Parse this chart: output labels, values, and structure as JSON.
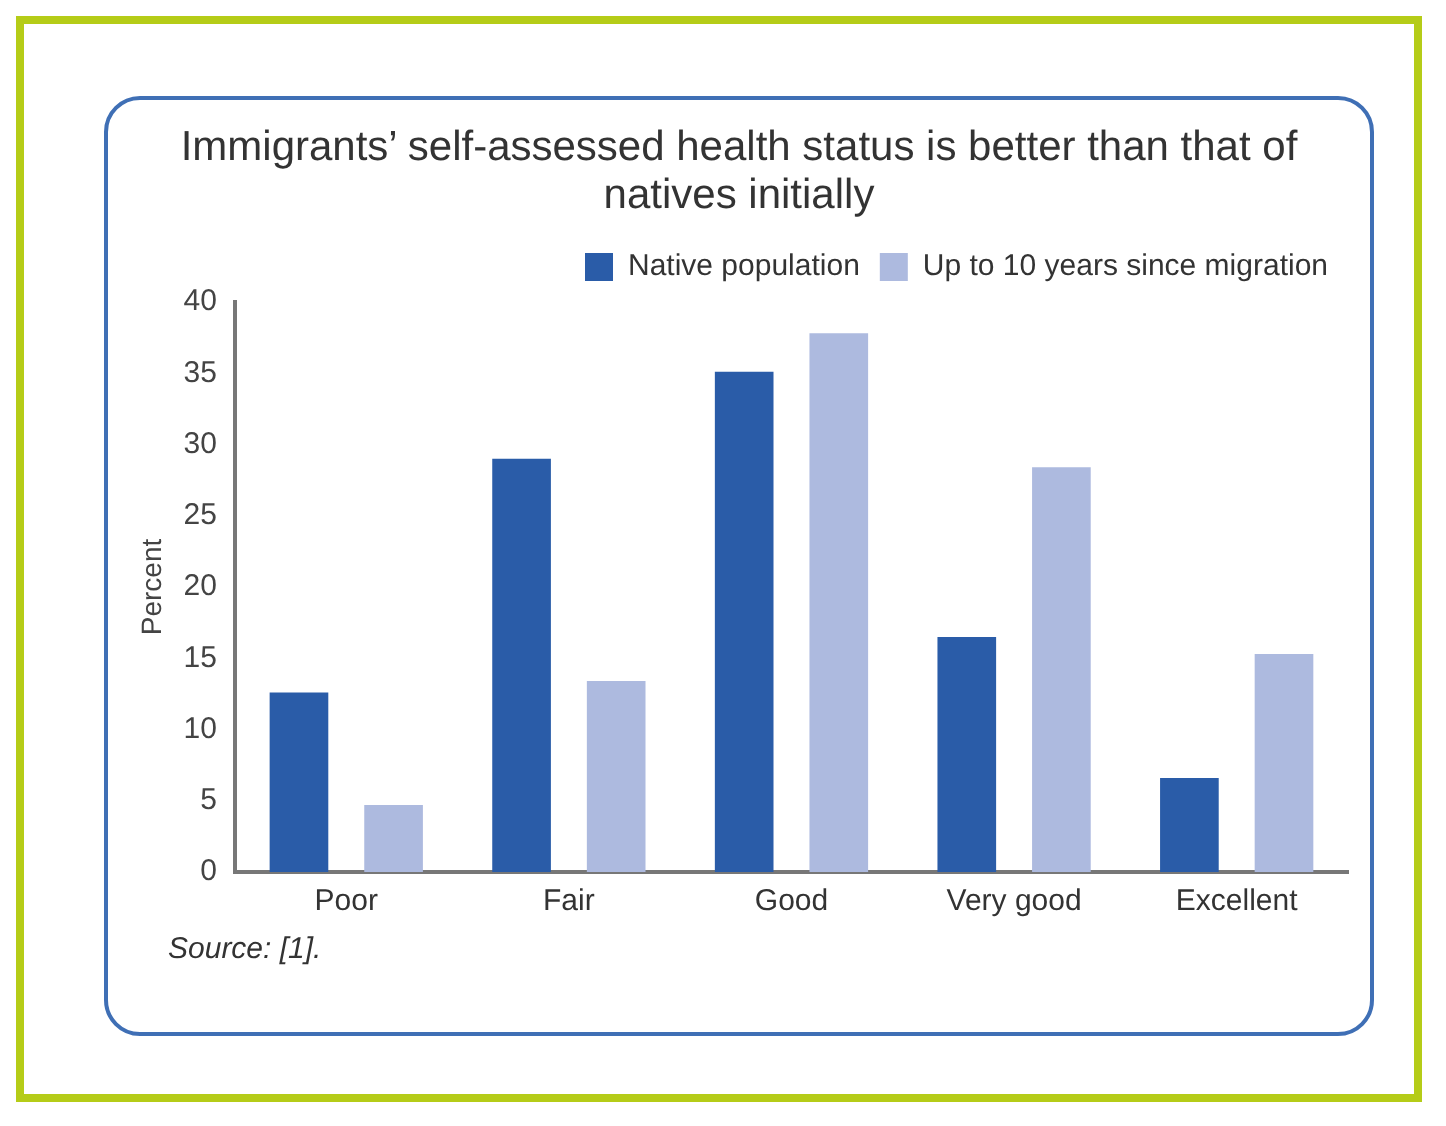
{
  "chart_data": {
    "type": "bar",
    "title": "Immigrants’ self-assessed health status is better than that of natives initially",
    "ylabel": "Percent",
    "categories": [
      "Poor",
      "Fair",
      "Good",
      "Very good",
      "Excellent"
    ],
    "series": [
      {
        "name": "Native population",
        "color": "#2a5ca8",
        "values": [
          12.6,
          29.0,
          35.1,
          16.5,
          6.6
        ]
      },
      {
        "name": "Up to 10 years since migration",
        "color": "#adbadf",
        "values": [
          4.7,
          13.4,
          37.8,
          28.4,
          15.3
        ]
      }
    ],
    "ylim": [
      0,
      40
    ],
    "yticks": [
      0,
      5,
      10,
      15,
      20,
      25,
      30,
      35,
      40
    ],
    "grid": false,
    "legend": "top right",
    "annotations": [
      "Source: [1]."
    ]
  }
}
